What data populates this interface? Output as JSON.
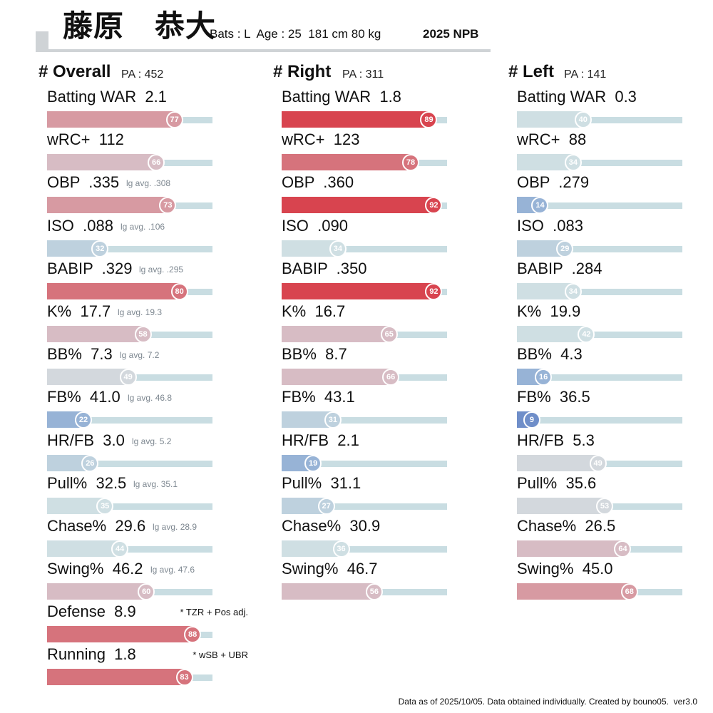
{
  "header": {
    "name": "藤原　恭大",
    "meta": "Bats : L  Age : 25  181 cm 80 kg",
    "season": "2025 NPB"
  },
  "colors": {
    "scale": [
      "#6f8ec9",
      "#97b3d6",
      "#bed1de",
      "#cfdfe3",
      "#d3d8dd",
      "#d7bcc4",
      "#d79aa2",
      "#d6737c",
      "#d8444f"
    ]
  },
  "chart_data": [
    {
      "type": "bar",
      "title": "# Overall",
      "pa": "PA : 452",
      "xlim": [
        0,
        100
      ],
      "rows": [
        {
          "label": "Batting WAR  2.1",
          "percentile": 77
        },
        {
          "label": "wRC+  112",
          "percentile": 66
        },
        {
          "label": "OBP  .335",
          "avg": "lg avg. .308",
          "percentile": 73
        },
        {
          "label": "ISO  .088",
          "avg": "lg avg. .106",
          "percentile": 32
        },
        {
          "label": "BABIP  .329",
          "avg": "lg avg. .295",
          "percentile": 80
        },
        {
          "label": "K%  17.7",
          "avg": "lg avg. 19.3",
          "percentile": 58
        },
        {
          "label": "BB%  7.3",
          "avg": "lg avg. 7.2",
          "percentile": 49
        },
        {
          "label": "FB%  41.0",
          "avg": "lg avg. 46.8",
          "percentile": 22
        },
        {
          "label": "HR/FB  3.0",
          "avg": "lg avg. 5.2",
          "percentile": 26
        },
        {
          "label": "Pull%  32.5",
          "avg": "lg avg. 35.1",
          "percentile": 35
        },
        {
          "label": "Chase%  29.6",
          "avg": "lg avg. 28.9",
          "percentile": 44
        },
        {
          "label": "Swing%  46.2",
          "avg": "lg avg. 47.6",
          "percentile": 60
        },
        {
          "label": "Defense  8.9",
          "note": "* TZR + Pos adj.",
          "percentile": 88
        },
        {
          "label": "Running  1.8",
          "note": "* wSB + UBR",
          "percentile": 83
        }
      ]
    },
    {
      "type": "bar",
      "title": "# Right",
      "pa": "PA : 311",
      "xlim": [
        0,
        100
      ],
      "rows": [
        {
          "label": "Batting WAR  1.8",
          "percentile": 89
        },
        {
          "label": "wRC+  123",
          "percentile": 78
        },
        {
          "label": "OBP  .360",
          "percentile": 92
        },
        {
          "label": "ISO  .090",
          "percentile": 34
        },
        {
          "label": "BABIP  .350",
          "percentile": 92
        },
        {
          "label": "K%  16.7",
          "percentile": 65
        },
        {
          "label": "BB%  8.7",
          "percentile": 66
        },
        {
          "label": "FB%  43.1",
          "percentile": 31
        },
        {
          "label": "HR/FB  2.1",
          "percentile": 19
        },
        {
          "label": "Pull%  31.1",
          "percentile": 27
        },
        {
          "label": "Chase%  30.9",
          "percentile": 36
        },
        {
          "label": "Swing%  46.7",
          "percentile": 56
        }
      ]
    },
    {
      "type": "bar",
      "title": "# Left",
      "pa": "PA : 141",
      "xlim": [
        0,
        100
      ],
      "rows": [
        {
          "label": "Batting WAR  0.3",
          "percentile": 40
        },
        {
          "label": "wRC+  88",
          "percentile": 34
        },
        {
          "label": "OBP  .279",
          "percentile": 14
        },
        {
          "label": "ISO  .083",
          "percentile": 29
        },
        {
          "label": "BABIP  .284",
          "percentile": 34
        },
        {
          "label": "K%  19.9",
          "percentile": 42
        },
        {
          "label": "BB%  4.3",
          "percentile": 16
        },
        {
          "label": "FB%  36.5",
          "percentile": 9
        },
        {
          "label": "HR/FB  5.3",
          "percentile": 49
        },
        {
          "label": "Pull%  35.6",
          "percentile": 53
        },
        {
          "label": "Chase%  26.5",
          "percentile": 64
        },
        {
          "label": "Swing%  45.0",
          "percentile": 68
        }
      ]
    }
  ],
  "footer": "Data as of 2025/10/05. Data obtained individually. Created by bouno05.  ver3.0"
}
